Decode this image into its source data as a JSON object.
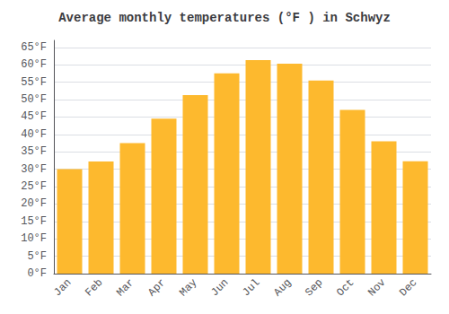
{
  "chart_data": {
    "type": "bar",
    "title": "Average monthly temperatures (°F ) in Schwyz",
    "categories": [
      "Jan",
      "Feb",
      "Mar",
      "Apr",
      "May",
      "Jun",
      "Jul",
      "Aug",
      "Sep",
      "Oct",
      "Nov",
      "Dec"
    ],
    "values": [
      30.0,
      32.2,
      37.5,
      44.5,
      51.3,
      57.5,
      61.3,
      60.3,
      55.5,
      47.0,
      38.0,
      32.3
    ],
    "color": "#FDB92E",
    "ylim": [
      0,
      67
    ],
    "yticks": [
      {
        "value": 0,
        "label": "0°F"
      },
      {
        "value": 5,
        "label": "5°F"
      },
      {
        "value": 10,
        "label": "10°F"
      },
      {
        "value": 15,
        "label": "15°F"
      },
      {
        "value": 20,
        "label": "20°F"
      },
      {
        "value": 25,
        "label": "25°F"
      },
      {
        "value": 30,
        "label": "30°F"
      },
      {
        "value": 35,
        "label": "35°F"
      },
      {
        "value": 40,
        "label": "40°F"
      },
      {
        "value": 45,
        "label": "45°F"
      },
      {
        "value": 50,
        "label": "50°F"
      },
      {
        "value": 55,
        "label": "55°F"
      },
      {
        "value": 60,
        "label": "60°F"
      },
      {
        "value": 65,
        "label": "65°F"
      }
    ],
    "grid": true
  }
}
